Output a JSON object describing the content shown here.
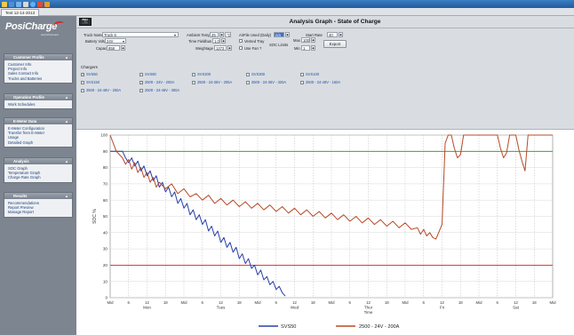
{
  "window": {
    "tab_title": "Test 12-14-2013"
  },
  "toolbar": {
    "icons": [
      "open-icon",
      "save-icon",
      "disk-icon",
      "print-icon",
      "help-icon",
      "close-icon",
      "tools-icon"
    ]
  },
  "logo": {
    "name": "PosiCharge",
    "sub": "AeroVironment"
  },
  "sidebar": {
    "panels": [
      {
        "title": "Customer Profile",
        "items": [
          "Customer Info",
          "Project Info",
          "Sales Contact Info",
          "Trucks and Batteries"
        ]
      },
      {
        "title": "Operation Profile",
        "items": [
          "Work Schedules"
        ]
      },
      {
        "title": "E-Meter Data",
        "items": [
          "E-Meter Configuration",
          "Transfer from E-Meter",
          "Usage",
          "Detailed Graph"
        ]
      },
      {
        "title": "Analysis",
        "items": [
          "SOC Graph",
          "Temperature Graph",
          "Charge Rate Graph"
        ]
      },
      {
        "title": "Results",
        "items": [
          "Recommendations",
          "Report Preview",
          "Manage Report"
        ]
      }
    ]
  },
  "header": {
    "camera_label": "📷",
    "title": "Analysis Graph - State of Charge"
  },
  "controls": {
    "truck_name_label": "Truck Name",
    "truck_name_value": "Truck 6",
    "battery_voltage_label": "Battery Voltage",
    "battery_voltage_value": "24V",
    "capacity_label": "Capacity",
    "capacity_value": "858",
    "ambient_temp_label": "Ambient Temp",
    "ambient_temp_value": "25",
    "temp_unit": "°C",
    "time_fieldbus_label": "Time Fieldbus",
    "time_fieldbus_value": "1.0",
    "weightage_label": "Weightage",
    "weightage_value": "1272",
    "airfile_label": "AirFile Used (Daily)",
    "airfile_value": "n/a",
    "vented_tray_label": "Vented Tray",
    "use_fan_label": "Use Fan ?",
    "soc_limits_label": "SOC Limits",
    "max_label": "Max",
    "max_value": "100",
    "min_label": "Min",
    "min_value": "1",
    "start_rate_label": "Start Rate",
    "start_rate_value": "40",
    "export_label": "Export",
    "chargers_label": "Chargers",
    "chargers": [
      {
        "label": "SVS50",
        "checked": true
      },
      {
        "label": "SVS80",
        "checked": false
      },
      {
        "label": "SVS200",
        "checked": false
      },
      {
        "label": "SVS300",
        "checked": false
      },
      {
        "label": "SVS100",
        "checked": false
      },
      {
        "label": "SVS150",
        "checked": false
      },
      {
        "label": "2500 - 24V - 200A",
        "checked": true
      },
      {
        "label": "2500 - 24-36V - 200A",
        "checked": false
      },
      {
        "label": "2500 - 24-36V - 320A",
        "checked": false
      },
      {
        "label": "2500 - 24-48V - 160A",
        "checked": false
      },
      {
        "label": "2500 - 24-48V - 200A",
        "checked": false
      },
      {
        "label": "2500 - 24-48V - 300A",
        "checked": false
      }
    ]
  },
  "chart_data": {
    "type": "line",
    "ylabel": "SOC %",
    "ylim": [
      0,
      100
    ],
    "yticks": [
      0,
      10,
      20,
      30,
      40,
      50,
      60,
      70,
      80,
      90,
      100
    ],
    "xlim": [
      0,
      144
    ],
    "xticks": [
      {
        "x": 0,
        "label": "Mid"
      },
      {
        "x": 6,
        "label": "6"
      },
      {
        "x": 12,
        "label": "12"
      },
      {
        "x": 18,
        "label": "18"
      },
      {
        "x": 24,
        "label": "Mid"
      },
      {
        "x": 30,
        "label": "6"
      },
      {
        "x": 36,
        "label": "12"
      },
      {
        "x": 42,
        "label": "18"
      },
      {
        "x": 48,
        "label": "Mid"
      },
      {
        "x": 54,
        "label": "6"
      },
      {
        "x": 60,
        "label": "12"
      },
      {
        "x": 66,
        "label": "18"
      },
      {
        "x": 72,
        "label": "Mid"
      },
      {
        "x": 78,
        "label": "6"
      },
      {
        "x": 84,
        "label": "12"
      },
      {
        "x": 90,
        "label": "18"
      },
      {
        "x": 96,
        "label": "Mid"
      },
      {
        "x": 102,
        "label": "6"
      },
      {
        "x": 108,
        "label": "12"
      },
      {
        "x": 114,
        "label": "18"
      },
      {
        "x": 120,
        "label": "Mid"
      },
      {
        "x": 126,
        "label": "6"
      },
      {
        "x": 132,
        "label": "12"
      },
      {
        "x": 138,
        "label": "18"
      },
      {
        "x": 144,
        "label": "Mid"
      }
    ],
    "day_labels": [
      {
        "x": 12,
        "label": "Mon"
      },
      {
        "x": 36,
        "label": "Tues"
      },
      {
        "x": 60,
        "label": "Wed"
      },
      {
        "x": 84,
        "label": "Thur"
      },
      {
        "x": 108,
        "label": "Fri"
      },
      {
        "x": 132,
        "label": "Sat"
      },
      {
        "x": 156,
        "label": "Sun"
      }
    ],
    "xlabel": "Time",
    "reference_lines": [
      {
        "y": 90,
        "color": "#1a9a1a"
      },
      {
        "y": 20,
        "color": "#e02020"
      }
    ],
    "series": [
      {
        "name": "SVS50",
        "color": "#2840a8",
        "x": [
          0,
          4,
          5,
          6,
          7,
          8,
          9,
          10,
          11,
          12,
          13,
          14,
          15,
          16,
          17,
          18,
          19,
          20,
          21,
          22,
          23,
          24,
          25,
          26,
          27,
          28,
          29,
          30,
          31,
          32,
          33,
          34,
          35,
          36,
          37,
          38,
          39,
          40,
          41,
          42,
          43,
          44,
          45,
          46,
          47,
          48,
          49,
          50,
          51,
          52,
          53,
          54,
          55,
          56,
          57
        ],
        "y": [
          90,
          90,
          86,
          83,
          86,
          81,
          84,
          78,
          81,
          75,
          78,
          72,
          75,
          68,
          71,
          65,
          68,
          62,
          65,
          58,
          61,
          55,
          58,
          51,
          54,
          48,
          51,
          45,
          48,
          41,
          44,
          38,
          41,
          34,
          37,
          31,
          34,
          28,
          31,
          24,
          27,
          21,
          24,
          18,
          20,
          14,
          17,
          11,
          13,
          8,
          10,
          5,
          7,
          3,
          1
        ]
      },
      {
        "name": "2500 - 24V - 200A",
        "color": "#b84a26",
        "x": [
          0,
          2,
          4,
          5,
          6,
          7,
          8,
          9,
          10,
          11,
          12,
          13,
          14,
          15,
          16,
          18,
          20,
          22,
          24,
          26,
          28,
          30,
          32,
          34,
          36,
          38,
          40,
          42,
          44,
          46,
          48,
          50,
          52,
          54,
          56,
          58,
          60,
          62,
          64,
          66,
          68,
          70,
          72,
          74,
          76,
          78,
          80,
          82,
          84,
          86,
          88,
          90,
          92,
          94,
          96,
          98,
          100,
          101,
          102,
          103,
          104,
          105,
          106,
          108,
          109,
          110,
          111,
          112,
          113,
          114,
          115,
          120,
          126,
          127,
          128,
          129,
          130,
          131,
          132,
          133,
          134,
          135,
          136,
          144
        ],
        "y": [
          100,
          90,
          86,
          82,
          85,
          79,
          83,
          77,
          80,
          74,
          77,
          71,
          74,
          68,
          71,
          67,
          70,
          64,
          67,
          62,
          64,
          60,
          63,
          58,
          61,
          57,
          60,
          56,
          59,
          55,
          58,
          54,
          57,
          53,
          56,
          52,
          55,
          51,
          54,
          50,
          53,
          49,
          52,
          48,
          51,
          47,
          50,
          46,
          49,
          45,
          48,
          44,
          47,
          43,
          46,
          42,
          43,
          39,
          42,
          38,
          40,
          37,
          36,
          45,
          95,
          100,
          100,
          92,
          86,
          88,
          100,
          100,
          100,
          92,
          86,
          89,
          100,
          100,
          100,
          91,
          84,
          78,
          100,
          100
        ]
      }
    ],
    "legend_position": "bottom"
  }
}
